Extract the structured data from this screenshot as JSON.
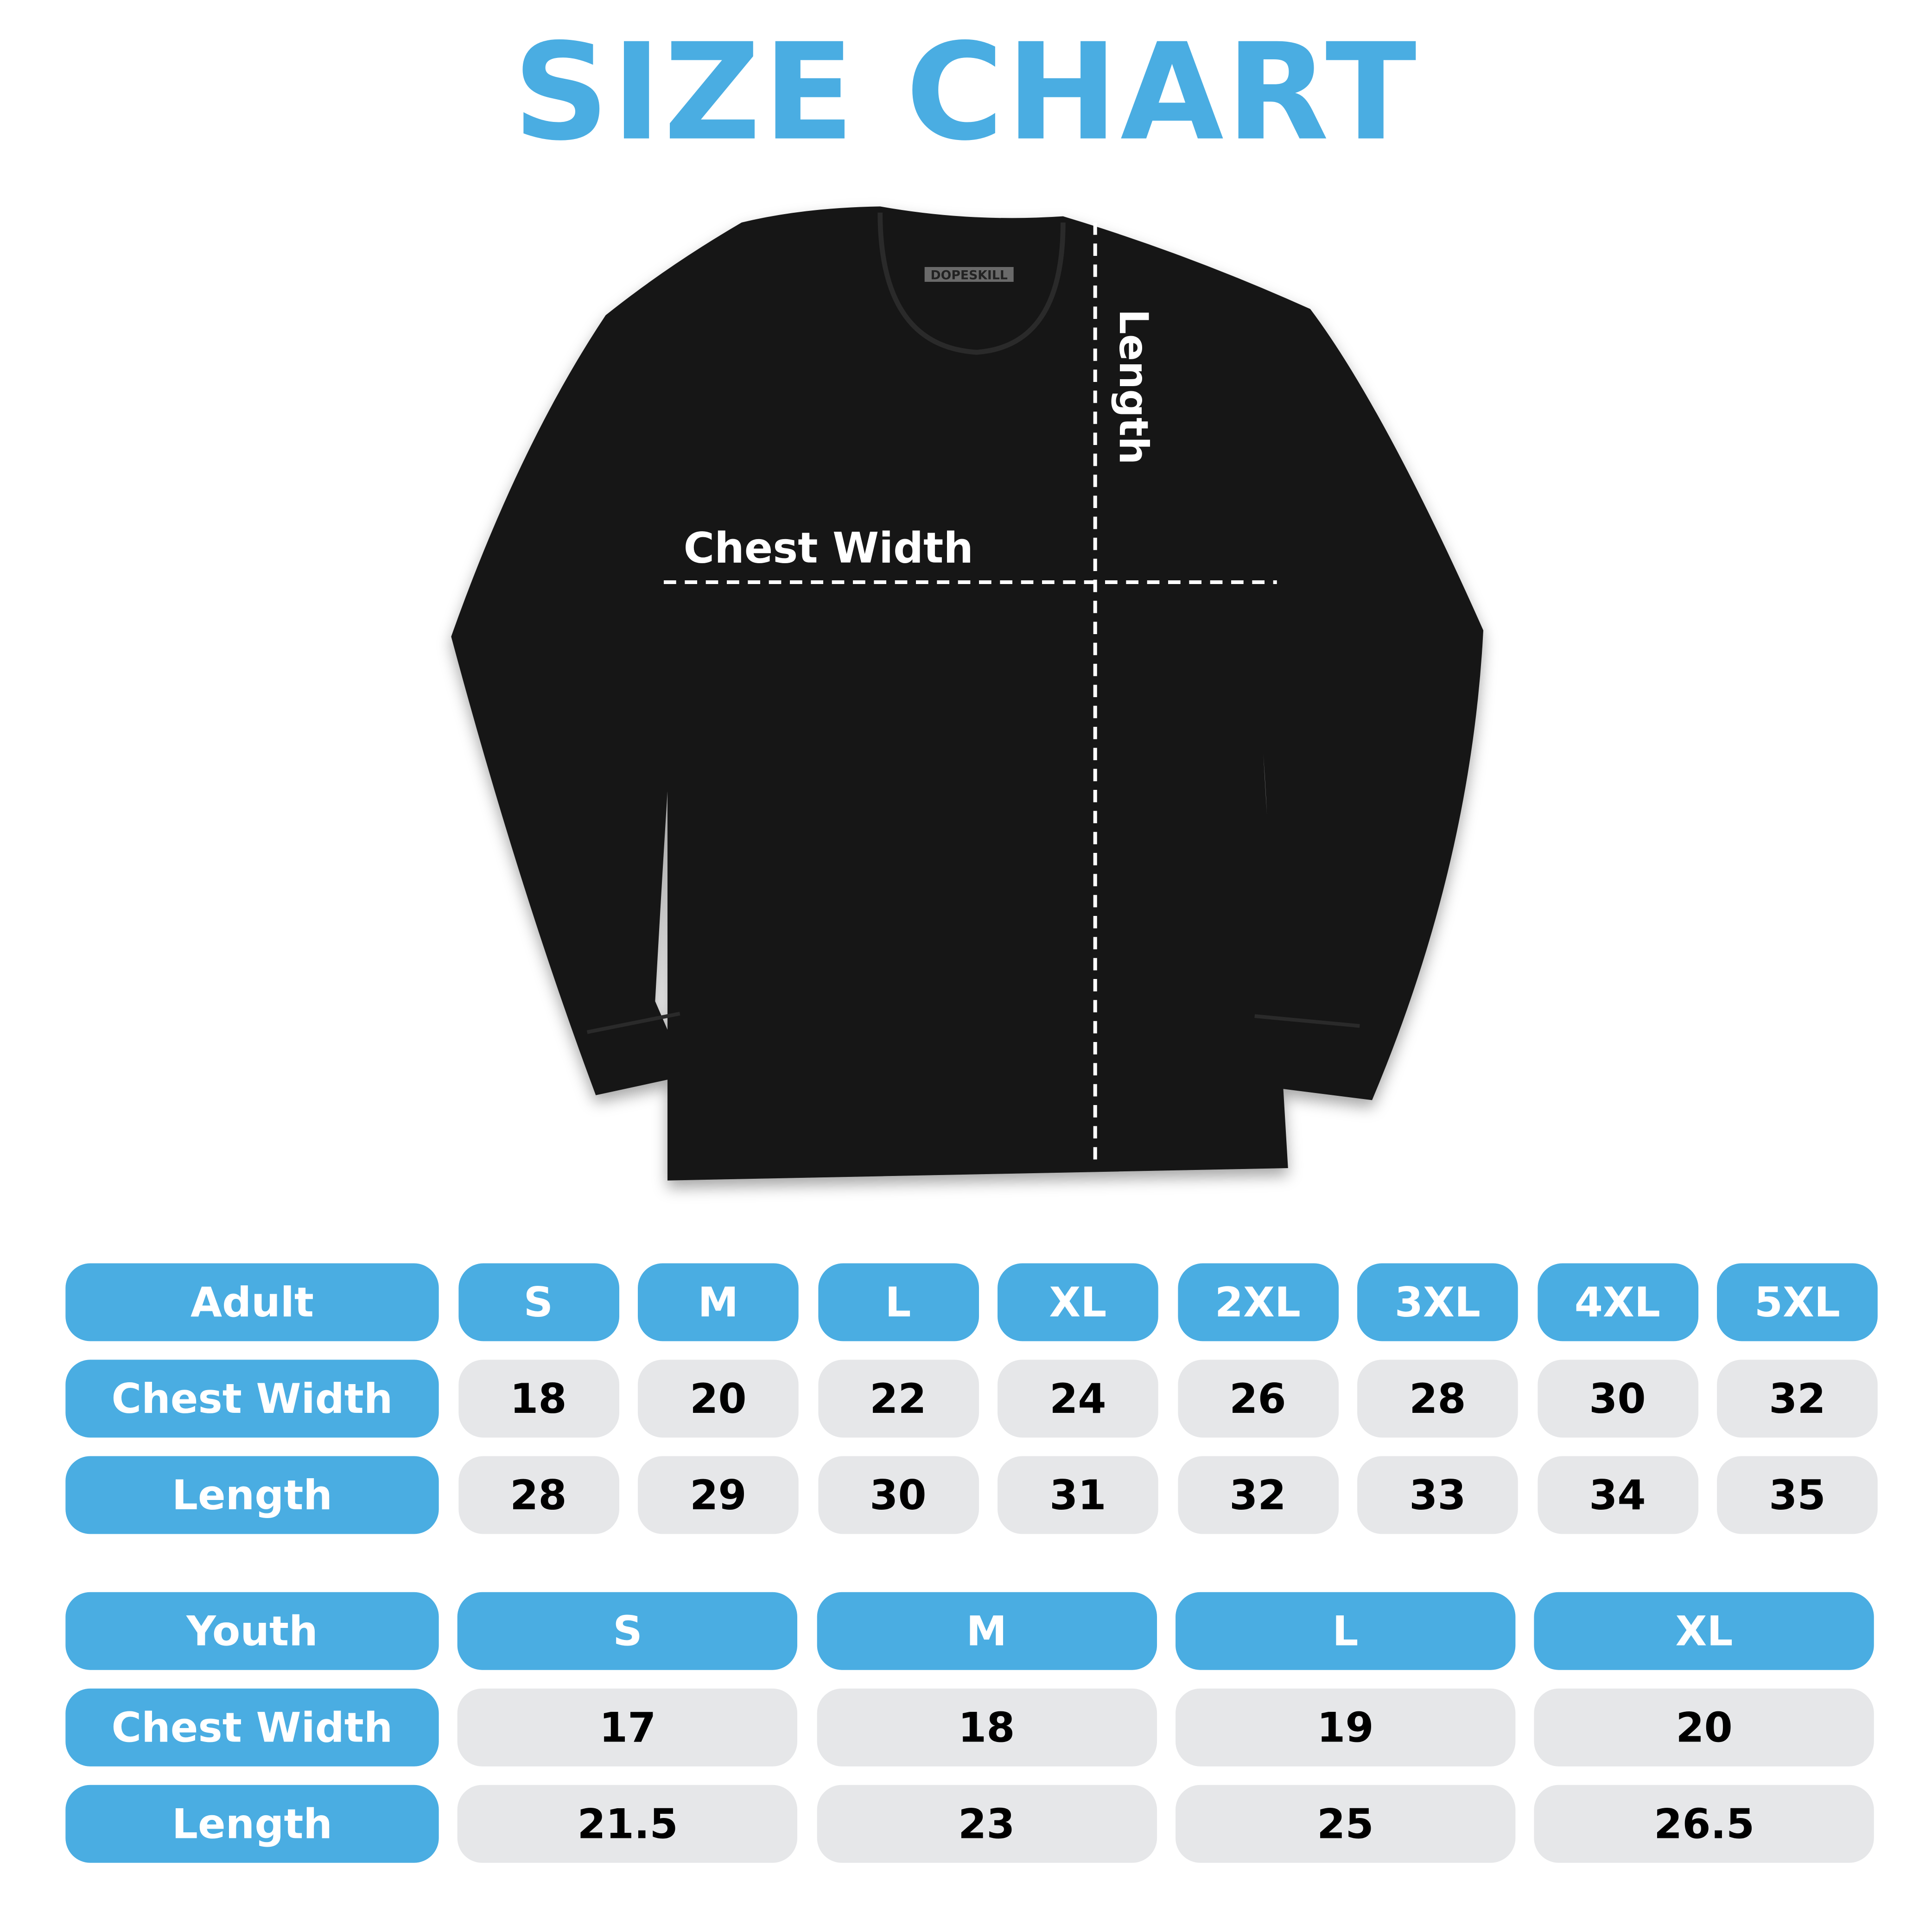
{
  "title": "SIZE CHART",
  "colors": {
    "accent": "#4aade2",
    "value_cell": "#e6e7e9",
    "shirt": "#141414"
  },
  "image": {
    "garment": "black long-sleeve t-shirt",
    "brand_label": "DOPESKILL",
    "chest_label": "Chest Width",
    "length_label": "Length"
  },
  "adult": {
    "header": "Adult",
    "sizes": [
      "S",
      "M",
      "L",
      "XL",
      "2XL",
      "3XL",
      "4XL",
      "5XL"
    ],
    "rows": [
      {
        "label": "Chest Width",
        "values": [
          "18",
          "20",
          "22",
          "24",
          "26",
          "28",
          "30",
          "32"
        ]
      },
      {
        "label": "Length",
        "values": [
          "28",
          "29",
          "30",
          "31",
          "32",
          "33",
          "34",
          "35"
        ]
      }
    ]
  },
  "youth": {
    "header": "Youth",
    "sizes": [
      "S",
      "M",
      "L",
      "XL"
    ],
    "rows": [
      {
        "label": "Chest Width",
        "values": [
          "17",
          "18",
          "19",
          "20"
        ]
      },
      {
        "label": "Length",
        "values": [
          "21.5",
          "23",
          "25",
          "26.5"
        ]
      }
    ]
  }
}
